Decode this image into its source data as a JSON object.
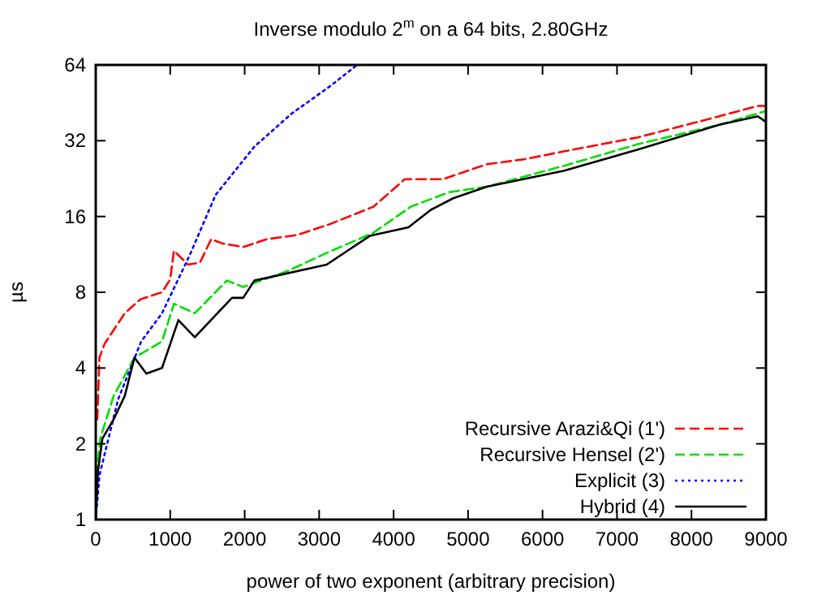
{
  "chart_data": {
    "type": "line",
    "title": "Inverse modulo 2$^{m}$ on a 64 bits, 2.80GHz",
    "xlabel": "power of two exponent (arbitrary precision)",
    "ylabel": "µs",
    "log": "y",
    "grid": false,
    "legend": "bottom right",
    "xlim": [
      0,
      9000
    ],
    "ylim": [
      1,
      64
    ],
    "xticks": [
      0,
      1000,
      2000,
      3000,
      4000,
      5000,
      6000,
      7000,
      8000,
      9000
    ],
    "yticks": [
      1,
      2,
      4,
      8,
      16,
      32,
      64
    ],
    "series": [
      {
        "name": "Recursive Arazi&Qi (1')",
        "color": "#ff0000",
        "line_style": "dashed",
        "x": [
          20,
          50,
          120,
          390,
          600,
          890,
          1000,
          1050,
          1240,
          1400,
          1550,
          1700,
          1980,
          2300,
          2700,
          3140,
          3730,
          4150,
          4660,
          5250,
          5750,
          6280,
          7280,
          8370,
          8890,
          9000
        ],
        "values": [
          2.5,
          4.4,
          5,
          6.6,
          7.5,
          8,
          9,
          11.7,
          10.3,
          10.5,
          13,
          12.5,
          12.1,
          13,
          13.5,
          14.9,
          17.5,
          22.5,
          22.5,
          25.8,
          27,
          29,
          33,
          40,
          44,
          44
        ]
      },
      {
        "name": "Recursive Hensel (2')",
        "color": "#00dd00",
        "line_style": "dashed",
        "x": [
          0,
          20,
          60,
          240,
          520,
          890,
          1050,
          1330,
          1760,
          1980,
          2570,
          3140,
          3730,
          4230,
          4750,
          5250,
          6280,
          7280,
          8370,
          9000
        ],
        "values": [
          1,
          1.6,
          2.1,
          3.1,
          4.4,
          5.1,
          7.2,
          6.6,
          8.9,
          8.4,
          9.7,
          11.6,
          13.8,
          17.5,
          20,
          21,
          25.4,
          31,
          37,
          42
        ]
      },
      {
        "name": "Explicit (3)",
        "color": "#0000ff",
        "line_style": "dotted",
        "x": [
          0,
          50,
          300,
          610,
          890,
          1260,
          1610,
          2130,
          2630,
          3140,
          3510
        ],
        "values": [
          1,
          1.5,
          3,
          5.1,
          6.6,
          11.2,
          19.5,
          30.3,
          41,
          52.5,
          64
        ]
      },
      {
        "name": "Hybrid (4)",
        "color": "#000000",
        "line_style": "solid",
        "x": [
          0,
          30,
          90,
          240,
          390,
          520,
          680,
          890,
          1110,
          1330,
          1830,
          1980,
          2130,
          3100,
          3680,
          4200,
          4500,
          4800,
          5250,
          6280,
          7280,
          8370,
          8890,
          9000
        ],
        "values": [
          1,
          1.56,
          2.1,
          2.5,
          3.1,
          4.4,
          3.8,
          4,
          6.2,
          5.3,
          7.6,
          7.6,
          8.9,
          10.3,
          13.4,
          14.5,
          17,
          18.9,
          21,
          24.3,
          29.5,
          37,
          40,
          38
        ]
      }
    ]
  }
}
